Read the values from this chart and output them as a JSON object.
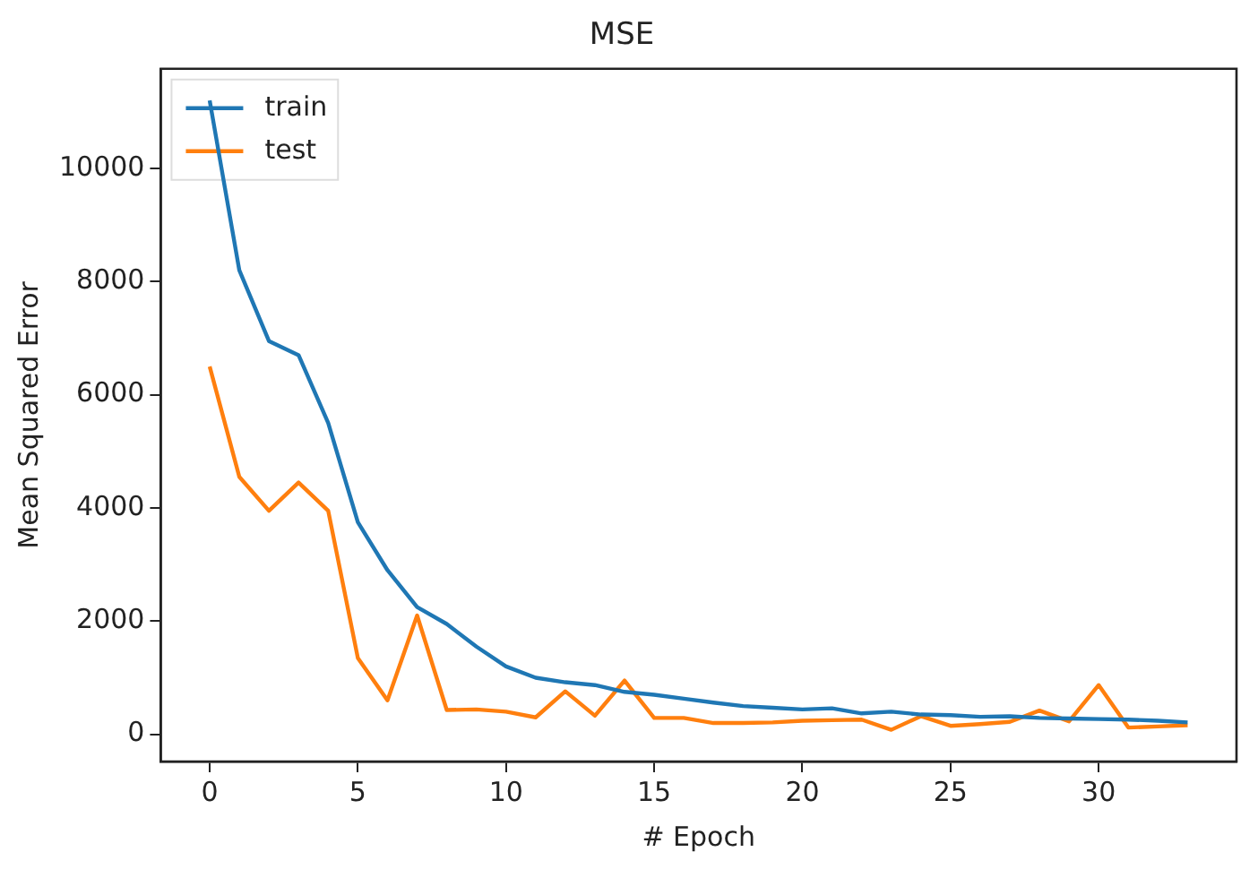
{
  "chart_data": {
    "type": "line",
    "title": "MSE",
    "xlabel": "# Epoch",
    "ylabel": "Mean Squared Error",
    "x": [
      0,
      1,
      2,
      3,
      4,
      5,
      6,
      7,
      8,
      9,
      10,
      11,
      12,
      13,
      14,
      15,
      16,
      17,
      18,
      19,
      20,
      21,
      22,
      23,
      24,
      25,
      26,
      27,
      28,
      29,
      30,
      31,
      32,
      33
    ],
    "series": [
      {
        "name": "train",
        "color": "#1f77b4",
        "values": [
          11200,
          8200,
          6950,
          6700,
          5500,
          3750,
          2900,
          2250,
          1950,
          1550,
          1200,
          1000,
          920,
          870,
          750,
          700,
          630,
          560,
          500,
          470,
          440,
          460,
          370,
          400,
          350,
          340,
          310,
          320,
          290,
          280,
          270,
          260,
          240,
          210
        ]
      },
      {
        "name": "test",
        "color": "#ff7f0e",
        "values": [
          6500,
          4550,
          3950,
          4450,
          3950,
          1350,
          600,
          2100,
          430,
          440,
          400,
          300,
          760,
          330,
          950,
          290,
          290,
          200,
          200,
          210,
          240,
          250,
          260,
          80,
          320,
          150,
          180,
          220,
          420,
          230,
          870,
          120,
          140,
          160
        ]
      }
    ],
    "xlim": [
      -1.65,
      34.65
    ],
    "ylim": [
      -480,
      11760
    ],
    "xticks": [
      0,
      5,
      10,
      15,
      20,
      25,
      30
    ],
    "yticks": [
      0,
      2000,
      4000,
      6000,
      8000,
      10000
    ],
    "grid": false,
    "legend": "top left",
    "marker": "none",
    "line_style": "solid"
  }
}
